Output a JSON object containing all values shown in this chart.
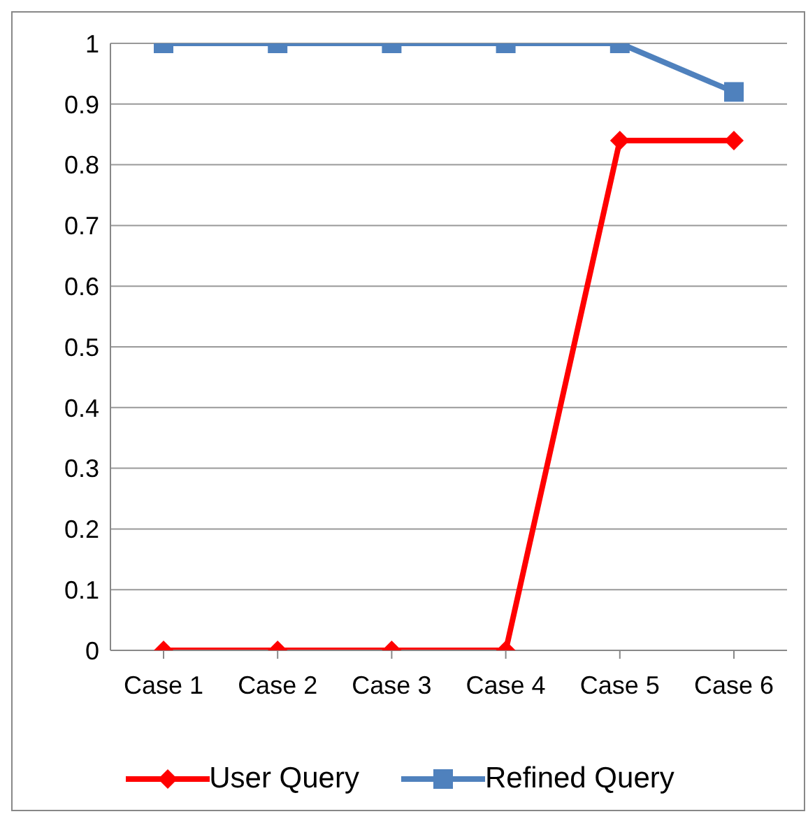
{
  "chart_data": {
    "type": "line",
    "categories": [
      "Case 1",
      "Case 2",
      "Case 3",
      "Case 4",
      "Case 5",
      "Case 6"
    ],
    "series": [
      {
        "name": "User Query",
        "color": "#ff0000",
        "marker": "diamond",
        "values": [
          0,
          0,
          0,
          0,
          0.84,
          0.84
        ]
      },
      {
        "name": "Refined Query",
        "color": "#4f81bd",
        "marker": "square",
        "values": [
          1,
          1,
          1,
          1,
          1,
          0.92
        ]
      }
    ],
    "ylim": [
      0,
      1
    ],
    "yticks": [
      0,
      0.1,
      0.2,
      0.3,
      0.4,
      0.5,
      0.6,
      0.7,
      0.8,
      0.9,
      1
    ],
    "grid": "y",
    "legend": "bottom"
  }
}
